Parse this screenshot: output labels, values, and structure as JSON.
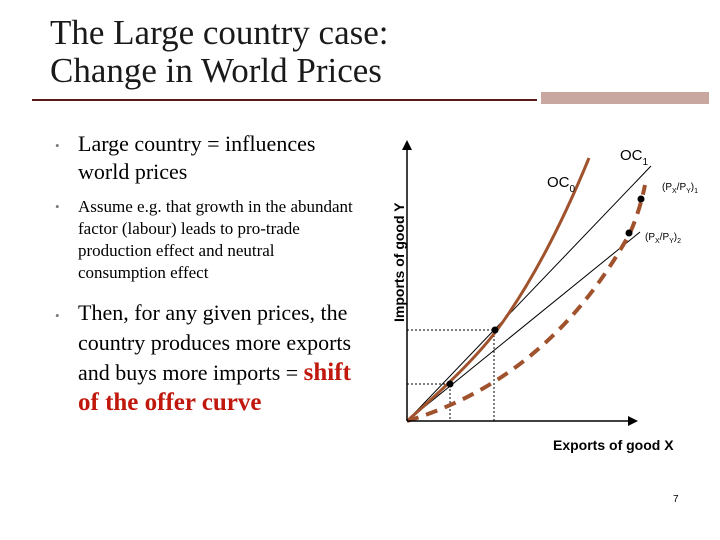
{
  "title_lines": [
    "The Large country case:",
    "Change in World Prices"
  ],
  "bullets": {
    "b1": "Large country = influences world prices",
    "b2": "Assume e.g. that growth in the abundant factor (labour) leads to pro-trade production effect and neutral consumption effect",
    "b3_plain": "Then, for any given prices, the country produces more exports and buys more imports = ",
    "b3_highlight": "shift of the offer curve"
  },
  "diagram": {
    "y_axis_label": "Imports of good Y",
    "x_axis_label": "Exports of good X",
    "curve_oc0": "OC",
    "curve_oc0_sub": "0",
    "curve_oc1": "OC",
    "curve_oc1_sub": "1",
    "price_line_1": {
      "open": "(P",
      "x": "X",
      "slash": "/P",
      "y": "Y",
      "close": ")",
      "sub": "1"
    },
    "price_line_2": {
      "open": "(P",
      "x": "X",
      "slash": "/P",
      "y": "Y",
      "close": ")",
      "sub": "2"
    },
    "colors": {
      "curve": "#a0522d",
      "axes": "#000000",
      "lines": "#000000",
      "highlight": "#c0180c"
    }
  },
  "page_number": "7"
}
